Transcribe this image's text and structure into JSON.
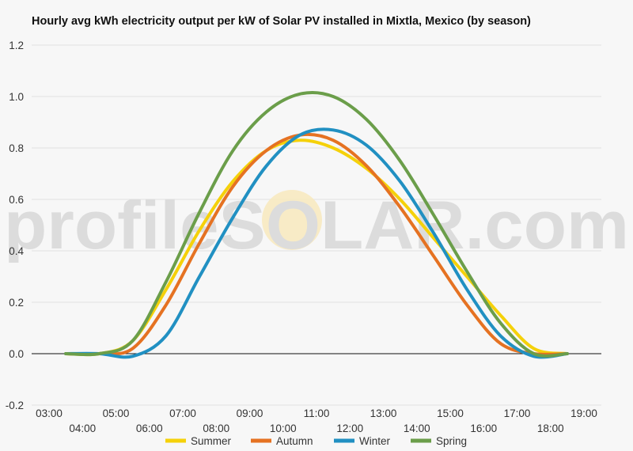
{
  "chart_data": {
    "type": "line",
    "title": "Hourly avg kWh electricity output per kW of Solar PV installed in Mixtla, Mexico (by season)",
    "xlabel": "",
    "ylabel": "",
    "ylim": [
      -0.2,
      1.2
    ],
    "yticks": [
      "-0.2",
      "0.0",
      "0.2",
      "0.4",
      "0.6",
      "0.8",
      "1.0",
      "1.2"
    ],
    "xlim": [
      3,
      19
    ],
    "xticks_upper": [
      "03:00",
      "05:00",
      "07:00",
      "09:00",
      "11:00",
      "13:00",
      "15:00",
      "17:00",
      "19:00"
    ],
    "xticks_lower": [
      "04:00",
      "06:00",
      "08:00",
      "10:00",
      "12:00",
      "14:00",
      "16:00",
      "18:00"
    ],
    "grid": true,
    "legend_position": "bottom",
    "x": [
      3.5,
      4.5,
      5.5,
      6.5,
      7.5,
      8.5,
      9.5,
      10.5,
      11.5,
      12.5,
      13.5,
      14.5,
      15.5,
      16.5,
      17.5,
      18.5
    ],
    "series": [
      {
        "name": "Summer",
        "color": "#f5d10a",
        "values": [
          0.0,
          0.0,
          0.05,
          0.25,
          0.48,
          0.67,
          0.79,
          0.83,
          0.8,
          0.72,
          0.6,
          0.45,
          0.3,
          0.15,
          0.02,
          0.0
        ]
      },
      {
        "name": "Autumn",
        "color": "#e57222",
        "values": [
          0.0,
          0.0,
          0.02,
          0.19,
          0.43,
          0.65,
          0.79,
          0.85,
          0.83,
          0.73,
          0.57,
          0.38,
          0.19,
          0.04,
          0.0,
          0.0
        ]
      },
      {
        "name": "Winter",
        "color": "#2190c2",
        "values": [
          0.0,
          0.0,
          -0.01,
          0.07,
          0.3,
          0.53,
          0.73,
          0.85,
          0.87,
          0.81,
          0.67,
          0.47,
          0.25,
          0.07,
          -0.01,
          0.0
        ]
      },
      {
        "name": "Spring",
        "color": "#6b9e4a",
        "values": [
          0.0,
          0.0,
          0.05,
          0.28,
          0.55,
          0.79,
          0.94,
          1.01,
          1.0,
          0.91,
          0.75,
          0.54,
          0.32,
          0.12,
          0.0,
          0.0
        ]
      }
    ],
    "watermark": "profileSOLAR.com"
  }
}
